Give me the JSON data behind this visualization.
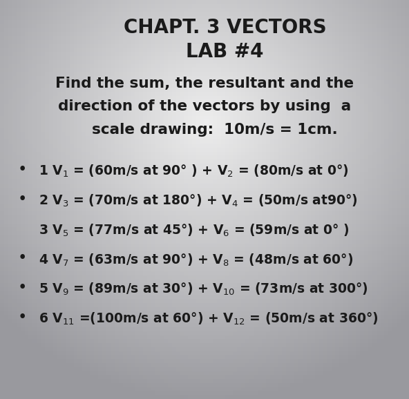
{
  "title_line1": "CHAPT. 3 VECTORS",
  "title_line2": "LAB #4",
  "instruction_lines": [
    "Find the sum, the resultant and the",
    "direction of the vectors by using  a",
    "    scale drawing:  10m/s = 1cm."
  ],
  "items": [
    {
      "num": "1",
      "bullet": true,
      "text": " V$_1$ = (60m/s at 90° ) + V$_2$ = (80m/s at 0°)"
    },
    {
      "num": "2",
      "bullet": true,
      "text": " V$_3$ = (70m/s at 180°) + V$_4$ = (50m/s at90°)"
    },
    {
      "num": "3",
      "bullet": false,
      "text": " V$_5$ = (77m/s at 45°) + V$_6$ = (59m/s at 0° )"
    },
    {
      "num": "4",
      "bullet": true,
      "text": " V$_7$ = (63m/s at 90°) + V$_8$ = (48m/s at 60°)"
    },
    {
      "num": "5",
      "bullet": true,
      "text": " V$_9$ = (89m/s at 30°) + V$_{10}$ = (73m/s at 300°)"
    },
    {
      "num": "6",
      "bullet": true,
      "text": " V$_{11}$ =(100m/s at 60°) + V$_{12}$ = (50m/s at 360°)"
    }
  ],
  "bg_color_light": "#e8e8e8",
  "bg_color_dark": "#a8a8a8",
  "text_color": "#1a1a1a",
  "title_fontsize": 20,
  "instruction_fontsize": 15.5,
  "item_fontsize": 13.5
}
